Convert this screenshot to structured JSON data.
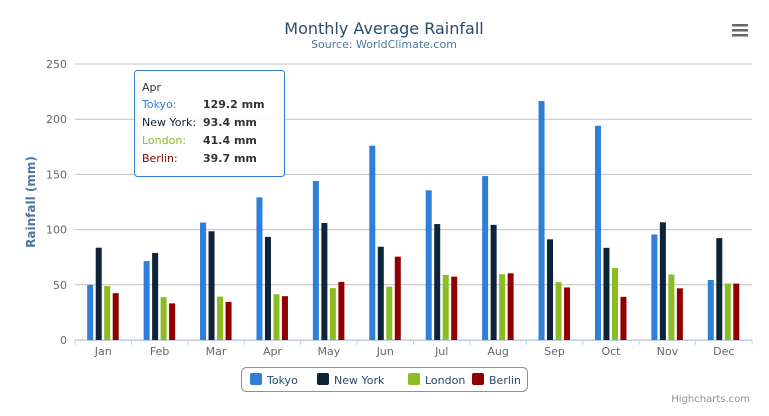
{
  "chart_data": {
    "type": "bar",
    "title": "Monthly Average Rainfall",
    "subtitle": "Source: WorldClimate.com",
    "xlabel": "",
    "ylabel": "Rainfall (mm)",
    "ylim": [
      0,
      250
    ],
    "yticks": [
      0,
      50,
      100,
      150,
      200,
      250
    ],
    "grid": true,
    "legend_position": "bottom-center",
    "categories": [
      "Jan",
      "Feb",
      "Mar",
      "Apr",
      "May",
      "Jun",
      "Jul",
      "Aug",
      "Sep",
      "Oct",
      "Nov",
      "Dec"
    ],
    "series": [
      {
        "name": "Tokyo",
        "color": "#2f7ed8",
        "values": [
          49.9,
          71.5,
          106.4,
          129.2,
          144.0,
          176.0,
          135.6,
          148.5,
          216.4,
          194.1,
          95.6,
          54.4
        ]
      },
      {
        "name": "New York",
        "color": "#0d233a",
        "values": [
          83.6,
          78.8,
          98.5,
          93.4,
          106.0,
          84.5,
          105.0,
          104.3,
          91.2,
          83.5,
          106.6,
          92.3
        ]
      },
      {
        "name": "London",
        "color": "#8bbc21",
        "values": [
          48.9,
          38.8,
          39.3,
          41.4,
          47.0,
          48.3,
          59.0,
          59.6,
          52.4,
          65.2,
          59.3,
          51.2
        ]
      },
      {
        "name": "Berlin",
        "color": "#910000",
        "values": [
          42.4,
          33.2,
          34.5,
          39.7,
          52.6,
          75.5,
          57.4,
          60.4,
          47.6,
          39.1,
          46.8,
          51.1
        ]
      }
    ],
    "tooltip": {
      "header": "Apr",
      "rows": [
        {
          "label": "Tokyo:",
          "value": "129.2 mm"
        },
        {
          "label": "New York:",
          "value": "93.4 mm"
        },
        {
          "label": "London:",
          "value": "41.4 mm"
        },
        {
          "label": "Berlin:",
          "value": "39.7 mm"
        }
      ]
    },
    "credits": "Highcharts.com"
  },
  "menu_icon": "hamburger-menu-icon"
}
